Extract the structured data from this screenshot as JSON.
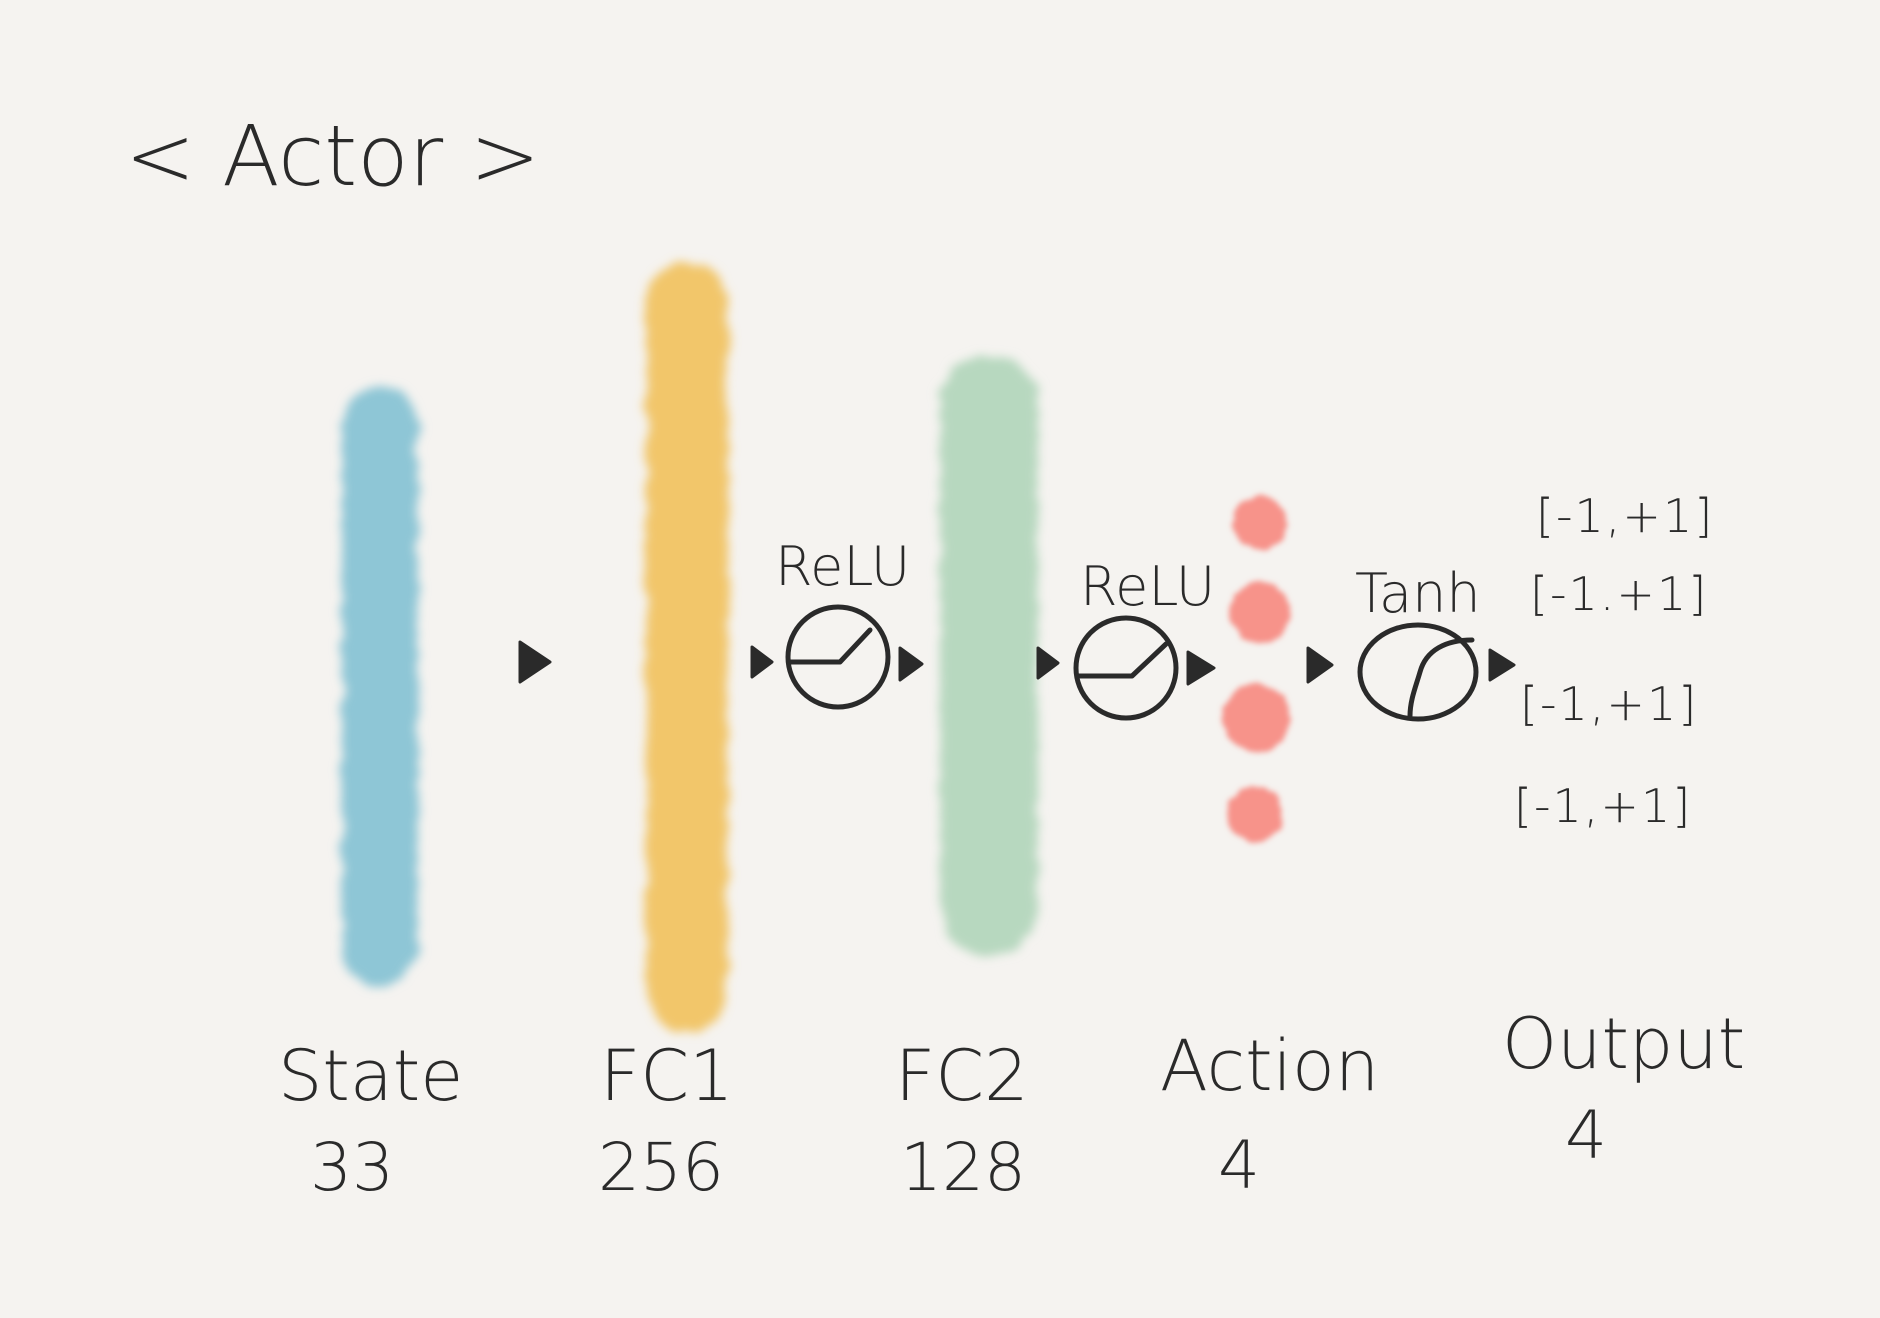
{
  "title": "< Actor >",
  "colors": {
    "background": "#f5f3f0",
    "state": "#8ec6d6",
    "fc1": "#f2c66a",
    "fc2": "#b7d8bf",
    "action": "#f7938a",
    "ink": "#2a2a2a"
  },
  "activations": {
    "relu1": "ReLU",
    "relu2": "ReLU",
    "tanh": "Tanh"
  },
  "layers": [
    {
      "label": "State",
      "size": "33"
    },
    {
      "label": "FC1",
      "size": "256"
    },
    {
      "label": "FC2",
      "size": "128"
    },
    {
      "label": "Action",
      "size": "4"
    },
    {
      "label": "Output",
      "size": "4"
    }
  ],
  "output_ranges": [
    "[-1,+1]",
    "[-1.+1]",
    "[-1,+1]",
    "[-1,+1]"
  ]
}
